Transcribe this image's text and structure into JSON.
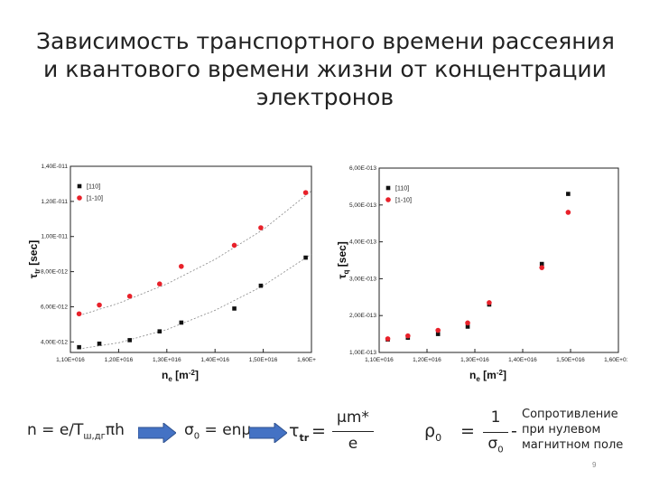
{
  "slide": {
    "title_lines": [
      "Зависимость транспортного времени рассеяния",
      "и квантового времени жизни от концентрации",
      "электронов"
    ],
    "page_number": "9"
  },
  "chart_data": [
    {
      "type": "scatter",
      "ylabel_main": "τ",
      "ylabel_sub": "tr",
      "ylabel_unit": "[sec]",
      "xlabel_main": "n",
      "xlabel_sub": "e",
      "xlabel_unit": "[m",
      "xlabel_exp": "-2",
      "xlabel_close": "]",
      "xlim": [
        1.1e+16,
        1.6e+16
      ],
      "ylim": [
        3.4e-12,
        1.4e-11
      ],
      "x_ticks": [
        "1,10E+016",
        "1,20E+016",
        "1,30E+016",
        "1,40E+016",
        "1,50E+016",
        "1,60E+016"
      ],
      "x_tick_values": [
        1.1e+16,
        1.2e+16,
        1.3e+16,
        1.4e+16,
        1.5e+16,
        1.6e+16
      ],
      "y_ticks": [
        "1,40E-011",
        "1,20E-011",
        "1,00E-011",
        "8,00E-012",
        "6,00E-012",
        "4,00E-012"
      ],
      "y_tick_values": [
        1.4e-11,
        1.2e-11,
        1e-11,
        8e-12,
        6e-12,
        4e-12
      ],
      "series": [
        {
          "name": "[110]",
          "color": "#111111",
          "marker": "square",
          "x": [
            1.118e+16,
            1.16e+16,
            1.223e+16,
            1.285e+16,
            1.33e+16,
            1.44e+16,
            1.495e+16,
            1.588e+16
          ],
          "y": [
            3.7e-12,
            3.9e-12,
            4.1e-12,
            4.6e-12,
            5.1e-12,
            5.9e-12,
            7.2e-12,
            8.8e-12
          ],
          "fit": [
            [
              1.118e+16,
              3.6e-12
            ],
            [
              1.2e+16,
              3.95e-12
            ],
            [
              1.3e+16,
              4.7e-12
            ],
            [
              1.4e+16,
              5.8e-12
            ],
            [
              1.5e+16,
              7.2e-12
            ],
            [
              1.6e+16,
              9e-12
            ]
          ]
        },
        {
          "name": "[1-10]",
          "color": "#e8212a",
          "marker": "circle",
          "x": [
            1.118e+16,
            1.16e+16,
            1.223e+16,
            1.285e+16,
            1.33e+16,
            1.44e+16,
            1.495e+16,
            1.588e+16
          ],
          "y": [
            5.6e-12,
            6.1e-12,
            6.6e-12,
            7.3e-12,
            8.3e-12,
            9.5e-12,
            1.05e-11,
            1.25e-11
          ],
          "fit": [
            [
              1.118e+16,
              5.5e-12
            ],
            [
              1.2e+16,
              6.2e-12
            ],
            [
              1.3e+16,
              7.3e-12
            ],
            [
              1.4e+16,
              8.7e-12
            ],
            [
              1.5e+16,
              1.04e-11
            ],
            [
              1.6e+16,
              1.26e-11
            ]
          ]
        }
      ],
      "legend": "top-left"
    },
    {
      "type": "scatter",
      "ylabel_main": "τ",
      "ylabel_sub": "q",
      "ylabel_unit": "[sec]",
      "xlabel_main": "n",
      "xlabel_sub": "e",
      "xlabel_unit": "[m",
      "xlabel_exp": "-2",
      "xlabel_close": "]",
      "xlim": [
        1.1e+16,
        1.6e+16
      ],
      "ylim": [
        1e-13,
        6e-13
      ],
      "x_ticks": [
        "1,10E+016",
        "1,20E+016",
        "1,30E+016",
        "1,40E+016",
        "1,50E+016",
        "1,60E+016"
      ],
      "x_tick_values": [
        1.1e+16,
        1.2e+16,
        1.3e+16,
        1.4e+16,
        1.5e+16,
        1.6e+16
      ],
      "y_ticks": [
        "6,00E-013",
        "5,00E-013",
        "4,00E-013",
        "3,00E-013",
        "2,00E-013",
        "1,00E-013"
      ],
      "y_tick_values": [
        6e-13,
        5e-13,
        4e-13,
        3e-13,
        2e-13,
        1e-13
      ],
      "series": [
        {
          "name": "[110]",
          "color": "#111111",
          "marker": "square",
          "x": [
            1.118e+16,
            1.16e+16,
            1.223e+16,
            1.285e+16,
            1.33e+16,
            1.44e+16,
            1.495e+16
          ],
          "y": [
            1.35e-13,
            1.4e-13,
            1.5e-13,
            1.7e-13,
            2.3e-13,
            3.4e-13,
            5.3e-13
          ]
        },
        {
          "name": "[1-10]",
          "color": "#e8212a",
          "marker": "circle",
          "x": [
            1.118e+16,
            1.16e+16,
            1.223e+16,
            1.285e+16,
            1.33e+16,
            1.44e+16,
            1.495e+16
          ],
          "y": [
            1.37e-13,
            1.45e-13,
            1.6e-13,
            1.8e-13,
            2.35e-13,
            3.3e-13,
            4.8e-13
          ]
        }
      ],
      "legend": "top-left"
    }
  ],
  "formula": {
    "part1_prefix": "n = e/T",
    "part1_sub": "ш,дг",
    "part1_suffix": "πh",
    "part2_prefix": "σ",
    "part2_sub": "0",
    "part2_suffix": " = enμ",
    "part3_main": "τ",
    "part3_sub": "tr",
    "part3_eq": "=",
    "part3_num": "μm*",
    "part3_den": "e",
    "part4_main": "ρ",
    "part4_sub": "0",
    "part4_eq": "=",
    "part4_num": "1",
    "part4_den_main": "σ",
    "part4_den_sub": "0",
    "part4_dash": "-",
    "arrow_color": "#4472c4"
  },
  "side_note": {
    "lines": [
      "Сопротивление",
      "при нулевом",
      "магнитном поле"
    ]
  }
}
